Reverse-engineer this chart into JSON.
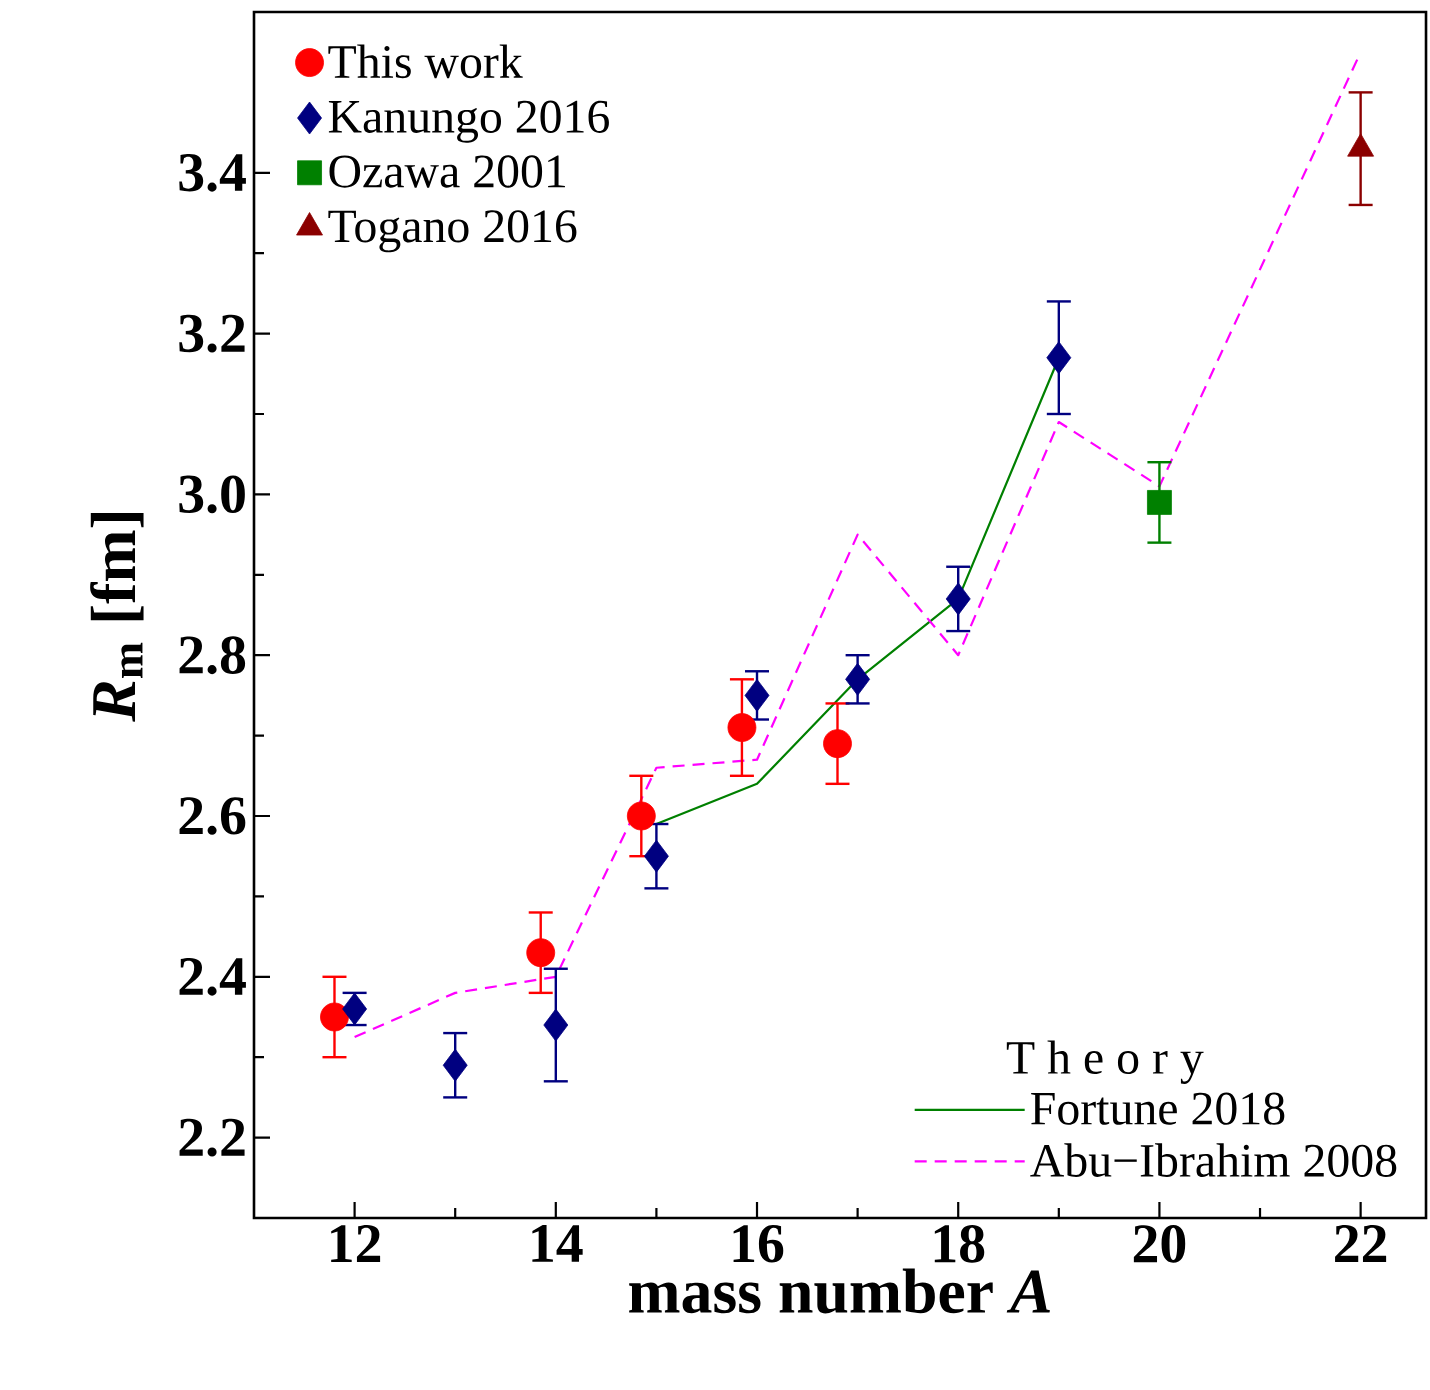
{
  "chart_data": {
    "type": "scatter",
    "xlabel": "mass number *A*",
    "ylabel": "*R*$_{m}$ [fm]",
    "legend_title": "T h e o r y",
    "legend": "top left",
    "xlim": [
      11,
      22.65
    ],
    "ylim": [
      2.1,
      3.6
    ],
    "xticks": [
      12,
      14,
      16,
      18,
      20,
      22
    ],
    "yticks": [
      2.2,
      2.4,
      2.6,
      2.8,
      {
        "value": 3.0,
        "label": "3.0"
      },
      3.2,
      3.4
    ],
    "series": [
      {
        "name": "This work",
        "marker": "circle",
        "color": "#ff0000",
        "x": [
          11.8,
          13.85,
          14.85,
          15.85,
          16.8
        ],
        "values": [
          2.35,
          2.43,
          2.6,
          2.71,
          2.69
        ],
        "errors": [
          0.05,
          0.05,
          0.05,
          0.06,
          0.05
        ]
      },
      {
        "name": "Kanungo 2016",
        "marker": "diamond",
        "color": "#000080",
        "x": [
          12,
          13,
          14,
          15,
          16,
          17,
          18,
          19
        ],
        "values": [
          2.36,
          2.29,
          2.34,
          2.55,
          2.75,
          2.77,
          2.87,
          3.17
        ],
        "errors": [
          0.02,
          0.04,
          0.07,
          0.04,
          0.03,
          0.03,
          0.04,
          0.07
        ]
      },
      {
        "name": "Ozawa 2001",
        "marker": "square",
        "color": "#008000",
        "x": [
          20
        ],
        "values": [
          2.99
        ],
        "errors": [
          0.05
        ]
      },
      {
        "name": "Togano 2016",
        "marker": "triangle",
        "color": "#8b0000",
        "x": [
          22
        ],
        "values": [
          3.43
        ],
        "errors": [
          0.07
        ]
      },
      {
        "name": "Fortune 2018",
        "type": "line",
        "line_style": "solid",
        "color": "#008000",
        "x": [
          15,
          16,
          17,
          18,
          19
        ],
        "values": [
          2.59,
          2.64,
          2.77,
          2.87,
          3.17
        ]
      },
      {
        "name": "Abu−Ibrahim 2008",
        "type": "line",
        "line_style": "dashed",
        "color": "#ff00ff",
        "x": [
          12,
          13,
          14,
          15,
          16,
          17,
          18,
          19,
          20,
          22
        ],
        "values": [
          2.325,
          2.38,
          2.4,
          2.66,
          2.67,
          2.95,
          2.8,
          3.09,
          3.01,
          3.55
        ]
      }
    ]
  }
}
